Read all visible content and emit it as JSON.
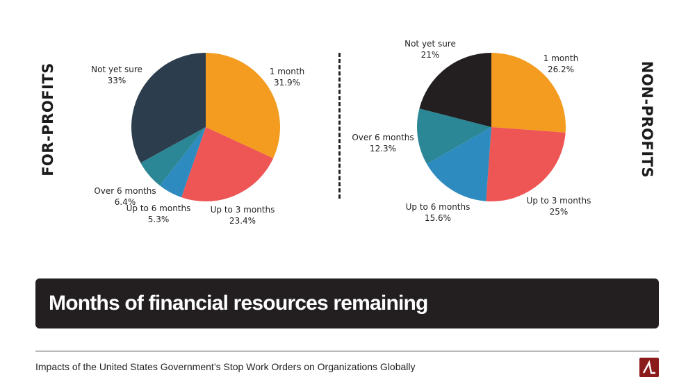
{
  "chart_data": [
    {
      "type": "pie",
      "side_label": "FOR-PROFITS",
      "slices": [
        {
          "label": "1 month",
          "pct_text": "31.9%",
          "value": 31.9,
          "color": "#F39C1F"
        },
        {
          "label": "Up to 3 months",
          "pct_text": "23.4%",
          "value": 23.4,
          "color": "#EE5555"
        },
        {
          "label": "Up to 6 months",
          "pct_text": "5.3%",
          "value": 5.3,
          "color": "#2E8BC0"
        },
        {
          "label": "Over 6 months",
          "pct_text": "6.4%",
          "value": 6.4,
          "color": "#2B8795"
        },
        {
          "label": "Not yet sure",
          "pct_text": "33%",
          "value": 33,
          "color": "#2C3E4D"
        }
      ]
    },
    {
      "type": "pie",
      "side_label": "NON-PROFITS",
      "slices": [
        {
          "label": "1 month",
          "pct_text": "26.2%",
          "value": 26.2,
          "color": "#F39C1F"
        },
        {
          "label": "Up to 3 months",
          "pct_text": "25%",
          "value": 25,
          "color": "#EE5555"
        },
        {
          "label": "Up to 6 months",
          "pct_text": "15.6%",
          "value": 15.6,
          "color": "#2E8BC0"
        },
        {
          "label": "Over 6 months",
          "pct_text": "12.3%",
          "value": 12.3,
          "color": "#2B8795"
        },
        {
          "label": "Not yet sure",
          "pct_text": "21%",
          "value": 21,
          "color": "#231F20"
        }
      ]
    }
  ],
  "banner": {
    "title": "Months of financial resources remaining"
  },
  "footer": {
    "text": "Impacts of the United States Government’s Stop Work Orders on Organizations Globally"
  },
  "logo": {
    "icon": "brand-logo-icon",
    "color": "#8B1A1A"
  }
}
